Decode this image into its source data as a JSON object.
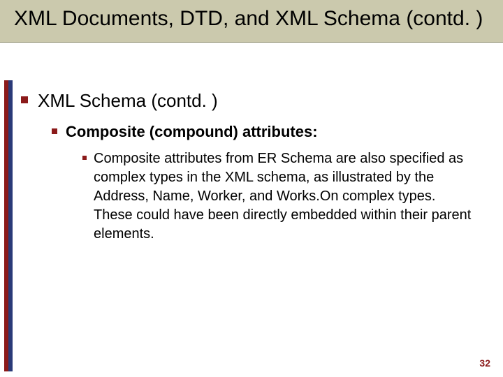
{
  "title": "XML Documents, DTD, and XML Schema (contd. )",
  "level1": "XML Schema (contd. )",
  "level2": "Composite (compound) attributes:",
  "level3": "Composite attributes from ER Schema are also specified as complex types in the XML schema, as illustrated by the Address, Name, Worker, and Works.On complex types. These could have been directly embedded within their parent elements.",
  "page_number": "32",
  "colors": {
    "title_band_bg": "#cbc9ad",
    "bullet": "#8b1a1a",
    "stripe_red": "#8b1a1a",
    "stripe_blue": "#2a3a78",
    "page_num": "#8b1a1a"
  },
  "fonts": {
    "title_size_pt": 30,
    "lvl1_size_pt": 26,
    "lvl2_size_pt": 22,
    "lvl3_size_pt": 20,
    "pagenum_size_pt": 14
  }
}
